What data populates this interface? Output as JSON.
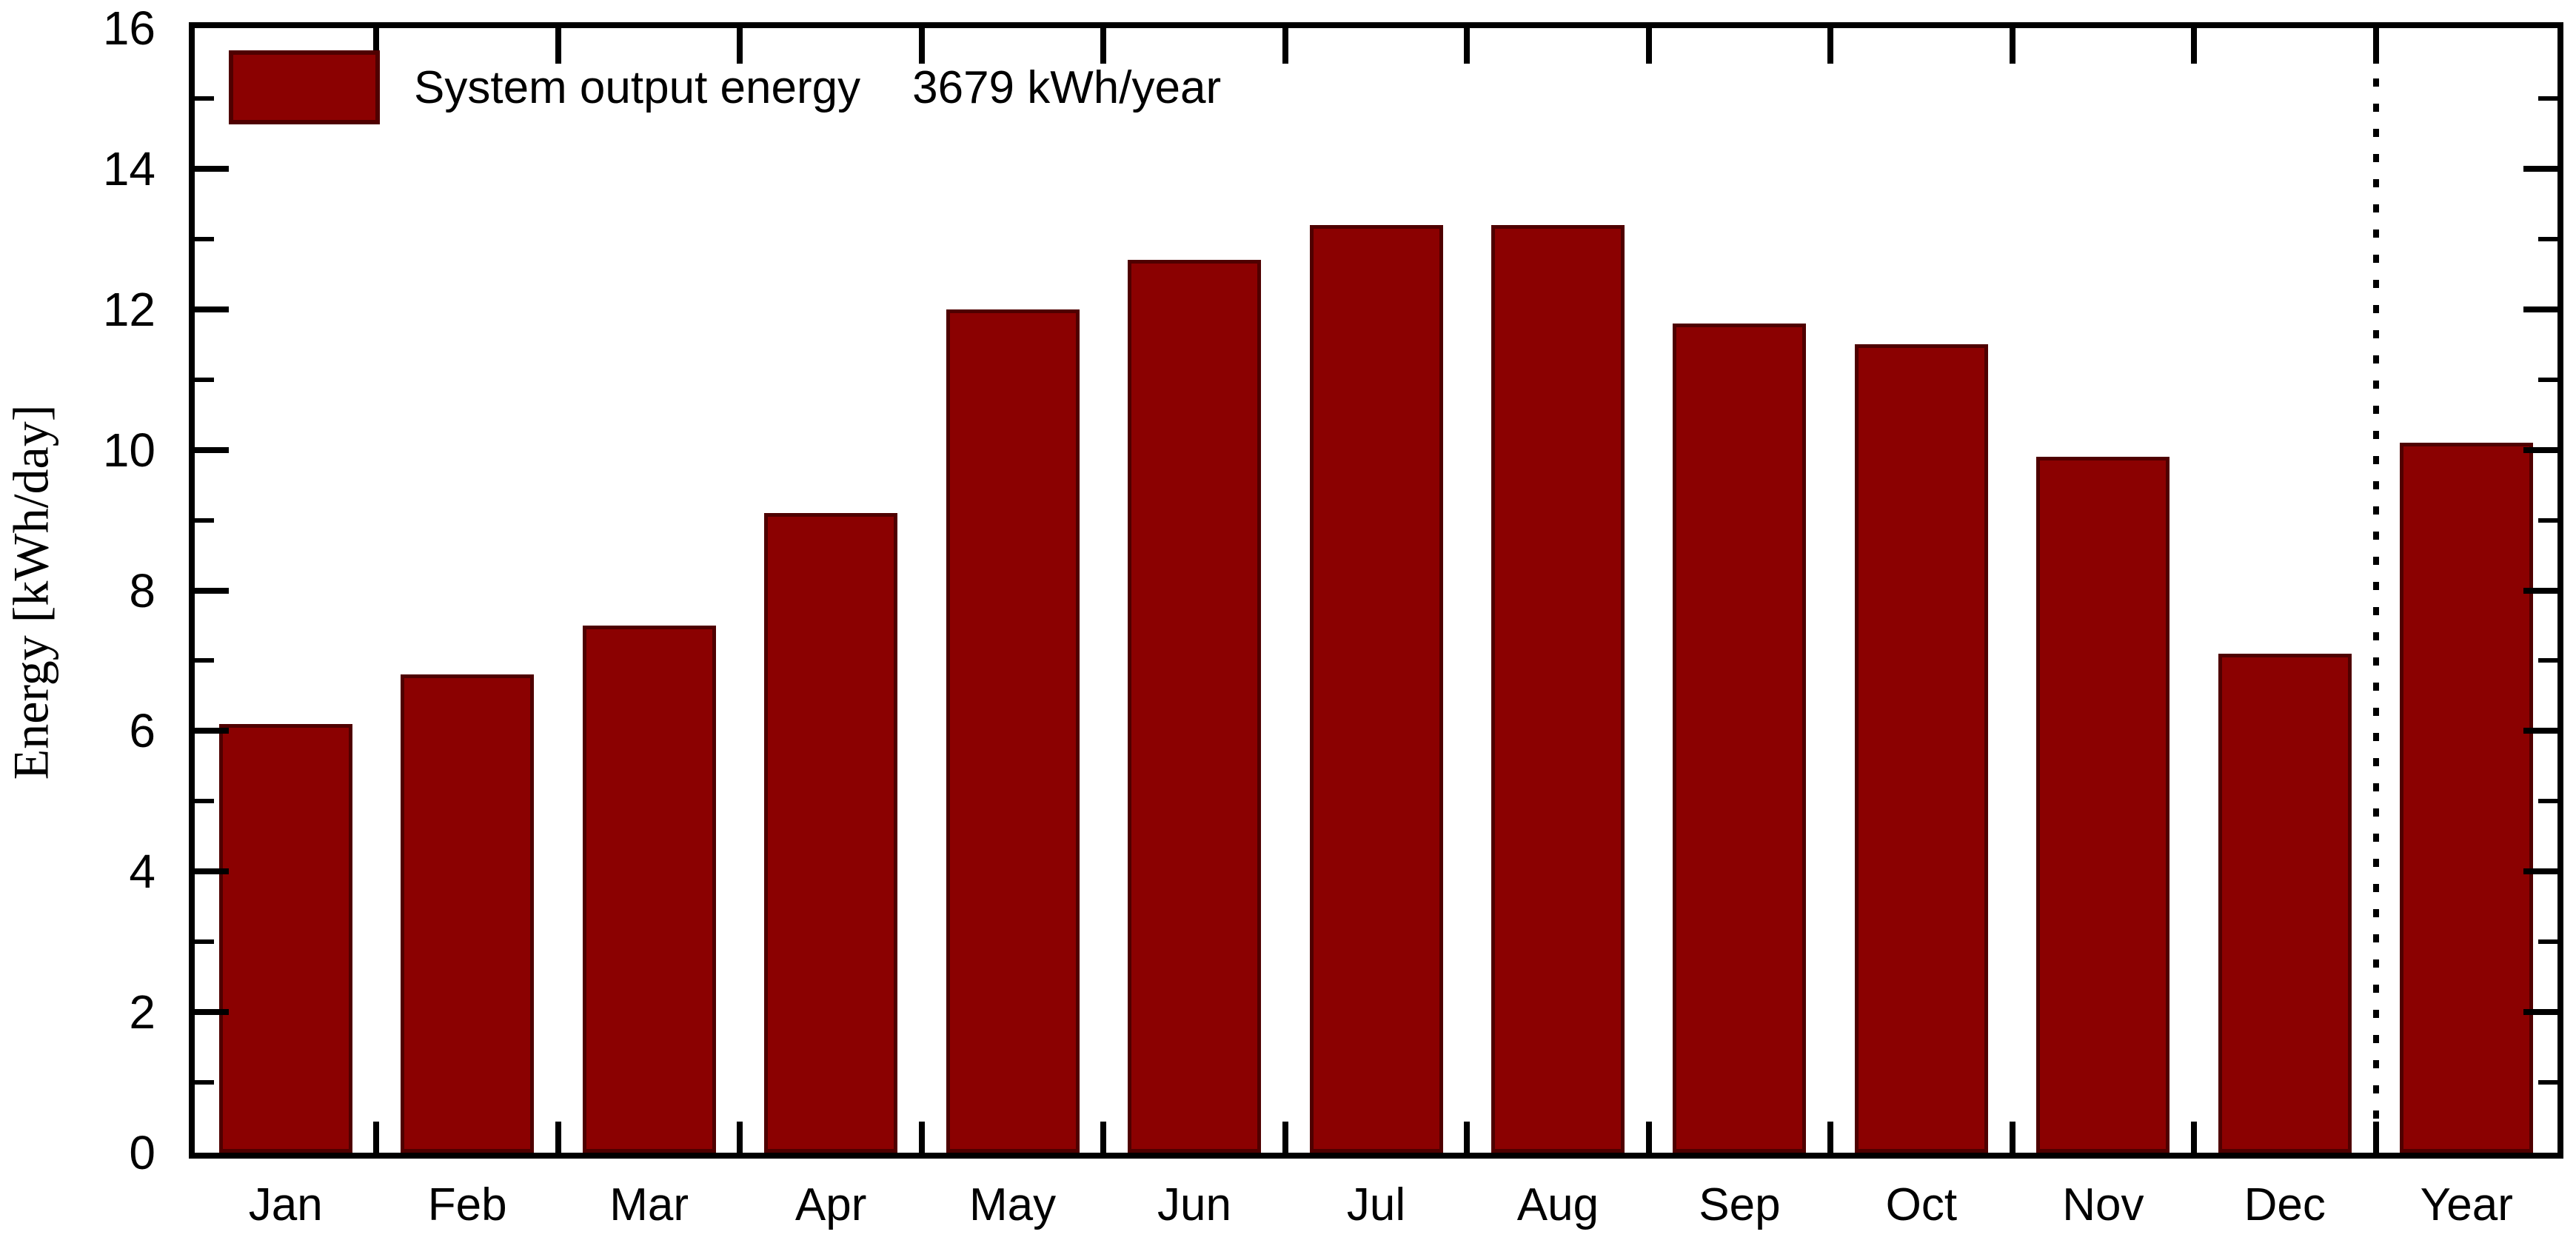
{
  "chart_data": {
    "type": "bar",
    "title": "",
    "ylabel": "Energy [kWh/day]",
    "xlabel": "",
    "categories": [
      "Jan",
      "Feb",
      "Mar",
      "Apr",
      "May",
      "Jun",
      "Jul",
      "Aug",
      "Sep",
      "Oct",
      "Nov",
      "Dec",
      "Year"
    ],
    "values": [
      6.1,
      6.8,
      7.5,
      9.1,
      12.0,
      12.7,
      13.2,
      13.2,
      11.8,
      11.5,
      9.9,
      7.1,
      10.1
    ],
    "ylim": [
      0,
      16
    ],
    "y_major_step": 2,
    "y_minor_step": 1,
    "grid": false,
    "legend_position": "top-left",
    "legend": {
      "label": "System output energy",
      "annotation": "3679 kWh/year"
    },
    "separator_after_index": 11,
    "separator_style": "dotted"
  },
  "colors": {
    "bar_fill": "#8B0101",
    "bar_edge": "#4F0000",
    "axis": "#000000",
    "text": "#000000",
    "background": "#FFFFFF"
  }
}
